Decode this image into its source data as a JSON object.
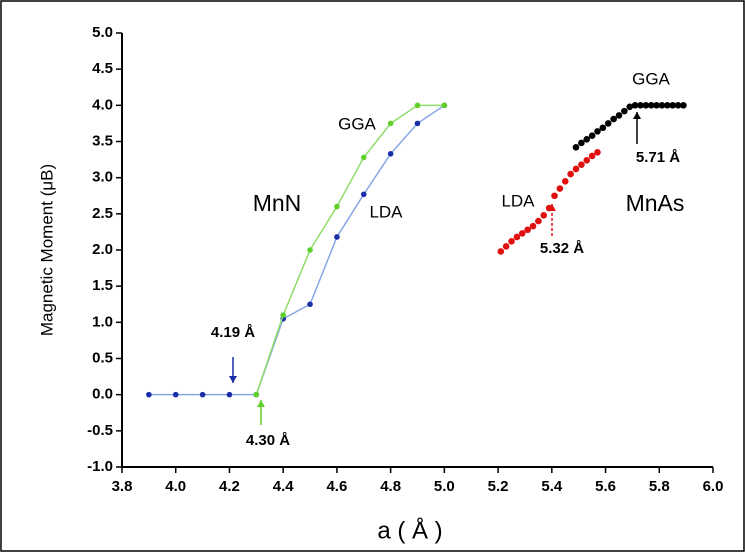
{
  "chart_data": {
    "type": "scatter",
    "x_label": "a ( Å )",
    "y_label": "Magnetic Moment (μB)",
    "xlim": [
      3.8,
      6.0
    ],
    "ylim": [
      -1.0,
      5.0
    ],
    "xticks": [
      3.8,
      {
        "value": 4,
        "label": "4.0"
      },
      4.2,
      4.4,
      4.6,
      4.8,
      {
        "value": 5,
        "label": "5.0"
      },
      5.2,
      5.4,
      5.6,
      5.8,
      {
        "value": 6,
        "label": "6.0"
      }
    ],
    "yticks": [
      {
        "value": -1,
        "label": "-1.0"
      },
      -0.5,
      {
        "value": 0,
        "label": "0.0"
      },
      0.5,
      {
        "value": 1,
        "label": "1.0"
      },
      1.5,
      {
        "value": 2,
        "label": "2.0"
      },
      2.5,
      {
        "value": 3,
        "label": "3.0"
      },
      3.5,
      {
        "value": 4,
        "label": "4.0"
      },
      4.5,
      {
        "value": 5,
        "label": "5.0"
      }
    ],
    "series": [
      {
        "color": "#1a2ea8",
        "line_color": "#86a6e6",
        "x": [
          3.9,
          4.0,
          4.1,
          4.2,
          4.3,
          4.4,
          4.5,
          4.6,
          4.7,
          4.8,
          4.9,
          5.0
        ],
        "values": [
          0,
          0,
          0,
          0,
          0,
          1.05,
          1.25,
          2.18,
          2.77,
          3.33,
          3.75,
          4.0
        ]
      },
      {
        "color": "#5fcf2a",
        "line_color": "#8fdc6a",
        "x": [
          4.3,
          4.4,
          4.5,
          4.6,
          4.7,
          4.8,
          4.9,
          5.0
        ],
        "values": [
          0,
          1.1,
          2.0,
          2.6,
          3.28,
          3.75,
          4.0,
          4.0
        ]
      },
      {
        "color": "#e01010",
        "line_color": null,
        "x": [
          5.21,
          5.23,
          5.25,
          5.27,
          5.29,
          5.31,
          5.33,
          5.35,
          5.37,
          5.39,
          5.41,
          5.43,
          5.45,
          5.47,
          5.49,
          5.51,
          5.53,
          5.55,
          5.57
        ],
        "values": [
          1.98,
          2.05,
          2.12,
          2.18,
          2.23,
          2.28,
          2.33,
          2.4,
          2.48,
          2.58,
          2.75,
          2.85,
          2.95,
          3.05,
          3.12,
          3.18,
          3.24,
          3.3,
          3.35
        ]
      },
      {
        "color": "#000000",
        "line_color": null,
        "x": [
          5.49,
          5.51,
          5.53,
          5.55,
          5.57,
          5.59,
          5.61,
          5.63,
          5.65,
          5.67,
          5.69,
          5.71,
          5.73,
          5.75,
          5.77,
          5.79,
          5.81,
          5.83,
          5.85,
          5.87,
          5.89
        ],
        "values": [
          3.42,
          3.48,
          3.53,
          3.58,
          3.64,
          3.69,
          3.75,
          3.81,
          3.86,
          3.92,
          3.98,
          4.0,
          4.0,
          4.0,
          4.0,
          4.0,
          4.0,
          4.0,
          4.0,
          4.0,
          4.0
        ]
      }
    ],
    "annotations": [
      "MnN",
      "MnAs",
      "GGA",
      "LDA",
      "GGA",
      "LDA",
      "4.19 Å",
      "4.30 Å",
      "5.32 Å",
      "5.71 Å"
    ]
  }
}
